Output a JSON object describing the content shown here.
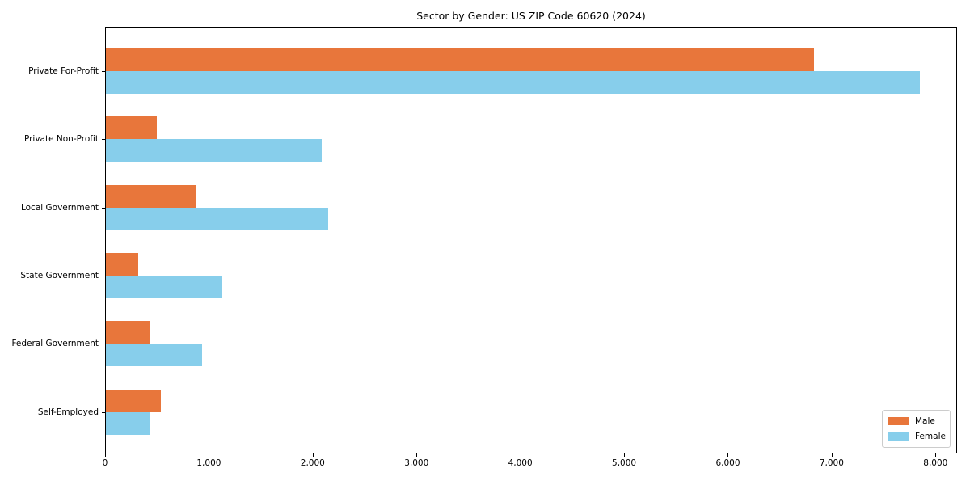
{
  "title": "Sector by Gender: US ZIP Code 60620 (2024)",
  "colors": {
    "male": "#e8763b",
    "female": "#87ceeb",
    "axis": "#000000",
    "legend_border": "#cccccc",
    "background": "#ffffff"
  },
  "legend": {
    "position": "lower right",
    "entries": [
      {
        "label": "Male",
        "color": "#e8763b"
      },
      {
        "label": "Female",
        "color": "#87ceeb"
      }
    ]
  },
  "chart_data": {
    "type": "bar",
    "orientation": "horizontal",
    "title": "Sector by Gender: US ZIP Code 60620 (2024)",
    "xlabel": "",
    "ylabel": "",
    "grid": false,
    "legend_position": "lower right",
    "xlim": [
      0,
      8200
    ],
    "xticks": [
      0,
      1000,
      2000,
      3000,
      4000,
      5000,
      6000,
      7000,
      8000
    ],
    "xtick_labels": [
      "0",
      "1,000",
      "2,000",
      "3,000",
      "4,000",
      "5,000",
      "6,000",
      "7,000",
      "8,000"
    ],
    "categories": [
      "Private For-Profit",
      "Private Non-Profit",
      "Local Government",
      "State Government",
      "Federal Government",
      "Self-Employed"
    ],
    "series": [
      {
        "name": "Male",
        "color": "#e8763b",
        "values": [
          6820,
          490,
          865,
          315,
          425,
          530
        ]
      },
      {
        "name": "Female",
        "color": "#87ceeb",
        "values": [
          7840,
          2080,
          2140,
          1120,
          925,
          430
        ]
      }
    ]
  }
}
